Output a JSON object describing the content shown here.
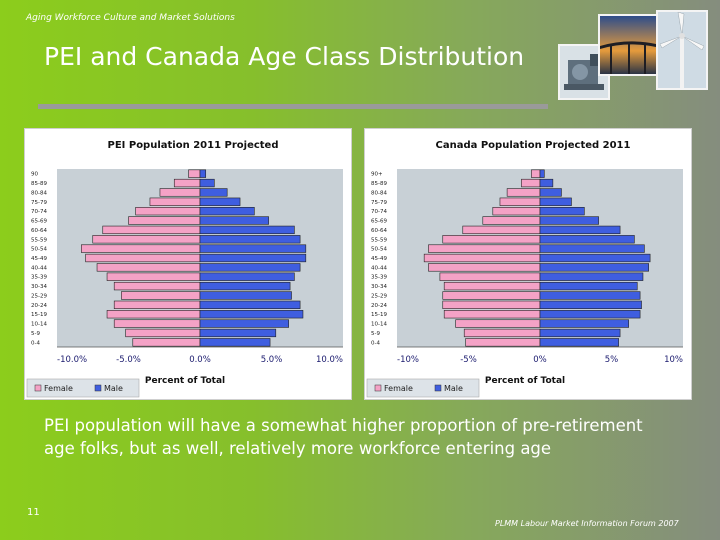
{
  "header": {
    "tag": "Aging Workforce Culture and Market Solutions"
  },
  "slide": {
    "title": "PEI and Canada Age Class Distribution",
    "caption": "PEI population will have a somewhat higher proportion of pre-retirement age folks, but as well, relatively more workforce entering age",
    "page_number": "11",
    "footer": "PLMM Labour Market Information Forum 2007"
  },
  "colors": {
    "female": "#f4a2c6",
    "male": "#3f5ee0",
    "plot_bg": "#c8d0d6"
  },
  "chart_data": [
    {
      "type": "bar",
      "orientation": "horizontal",
      "title": "PEI Population 2011 Projected",
      "xlabel": "Percent of Total",
      "xlim": [
        -10,
        10
      ],
      "x_ticks": [
        "-10.0%",
        "-5.0%",
        "0.0%",
        "5.0%",
        "10.0%"
      ],
      "categories": [
        "0-4",
        "5-9",
        "10-14",
        "15-19",
        "20-24",
        "25-29",
        "30-34",
        "35-39",
        "40-44",
        "45-49",
        "50-54",
        "55-59",
        "60-64",
        "65-69",
        "70-74",
        "75-79",
        "80-84",
        "85-89",
        "90"
      ],
      "category_labels": [
        "0-4",
        "5-9",
        "10-14",
        "15-19",
        "20-24",
        "25-29",
        "30-34",
        "35-39",
        "40-44",
        "45-49",
        "50-54",
        "55-59",
        "60-64",
        "65-69",
        "70-74",
        "75-79",
        "80-84",
        "85-89",
        "90"
      ],
      "series": [
        {
          "name": "Female",
          "values": [
            4.7,
            5.2,
            6.0,
            6.5,
            6.0,
            5.5,
            6.0,
            6.5,
            7.2,
            8.0,
            8.3,
            7.5,
            6.8,
            5.0,
            4.5,
            3.5,
            2.8,
            1.8,
            0.8
          ]
        },
        {
          "name": "Male",
          "values": [
            4.9,
            5.3,
            6.2,
            7.2,
            7.0,
            6.4,
            6.3,
            6.6,
            7.0,
            7.4,
            7.4,
            7.0,
            6.6,
            4.8,
            3.8,
            2.8,
            1.9,
            1.0,
            0.4
          ]
        }
      ],
      "legend_position": "bottom-left",
      "grid": false
    },
    {
      "type": "bar",
      "orientation": "horizontal",
      "title": "Canada Population Projected 2011",
      "xlabel": "Percent of Total",
      "xlim": [
        -10,
        10
      ],
      "x_ticks": [
        "-10%",
        "-5%",
        "0%",
        "5%",
        "10%"
      ],
      "categories": [
        "0-4",
        "5-9",
        "10-14",
        "15-19",
        "20-24",
        "25-29",
        "30-34",
        "35-39",
        "40-44",
        "45-49",
        "50-54",
        "55-59",
        "60-64",
        "65-69",
        "70-74",
        "75-79",
        "80-84",
        "85-89",
        "90+"
      ],
      "category_labels": [
        "0-4",
        "5-9",
        "10-14",
        "15-19",
        "20-24",
        "25-29",
        "30-34",
        "35-39",
        "40-44",
        "45-49",
        "50-54",
        "55-59",
        "60-64",
        "65-69",
        "70-74",
        "75-79",
        "80-84",
        "85-89",
        "90+"
      ],
      "series": [
        {
          "name": "Female",
          "values": [
            5.2,
            5.3,
            5.9,
            6.7,
            6.8,
            6.8,
            6.7,
            7.0,
            7.8,
            8.1,
            7.8,
            6.8,
            5.4,
            4.0,
            3.3,
            2.8,
            2.3,
            1.3,
            0.6
          ]
        },
        {
          "name": "Male",
          "values": [
            5.5,
            5.6,
            6.2,
            7.0,
            7.1,
            7.0,
            6.8,
            7.2,
            7.6,
            7.7,
            7.3,
            6.6,
            5.6,
            4.1,
            3.1,
            2.2,
            1.5,
            0.9,
            0.3
          ]
        }
      ],
      "legend_position": "bottom-left",
      "grid": false
    }
  ]
}
